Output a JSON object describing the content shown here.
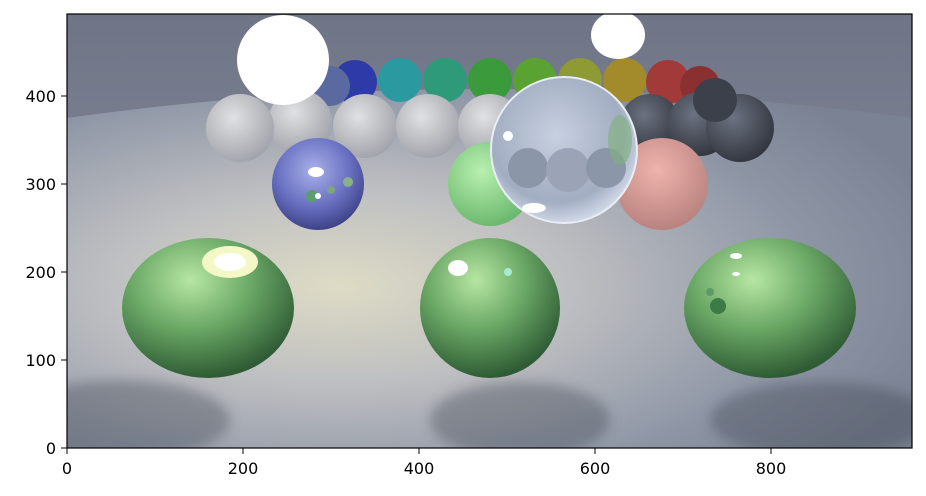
{
  "figure": {
    "x_ticks": [
      "0",
      "200",
      "400",
      "600",
      "800"
    ],
    "y_ticks": [
      "0",
      "100",
      "200",
      "300",
      "400"
    ],
    "x_range": [
      0,
      960
    ],
    "y_range": [
      0,
      490
    ],
    "image_content": "rendered scene: rows of colored diffuse and glass spheres on a curved floor"
  }
}
